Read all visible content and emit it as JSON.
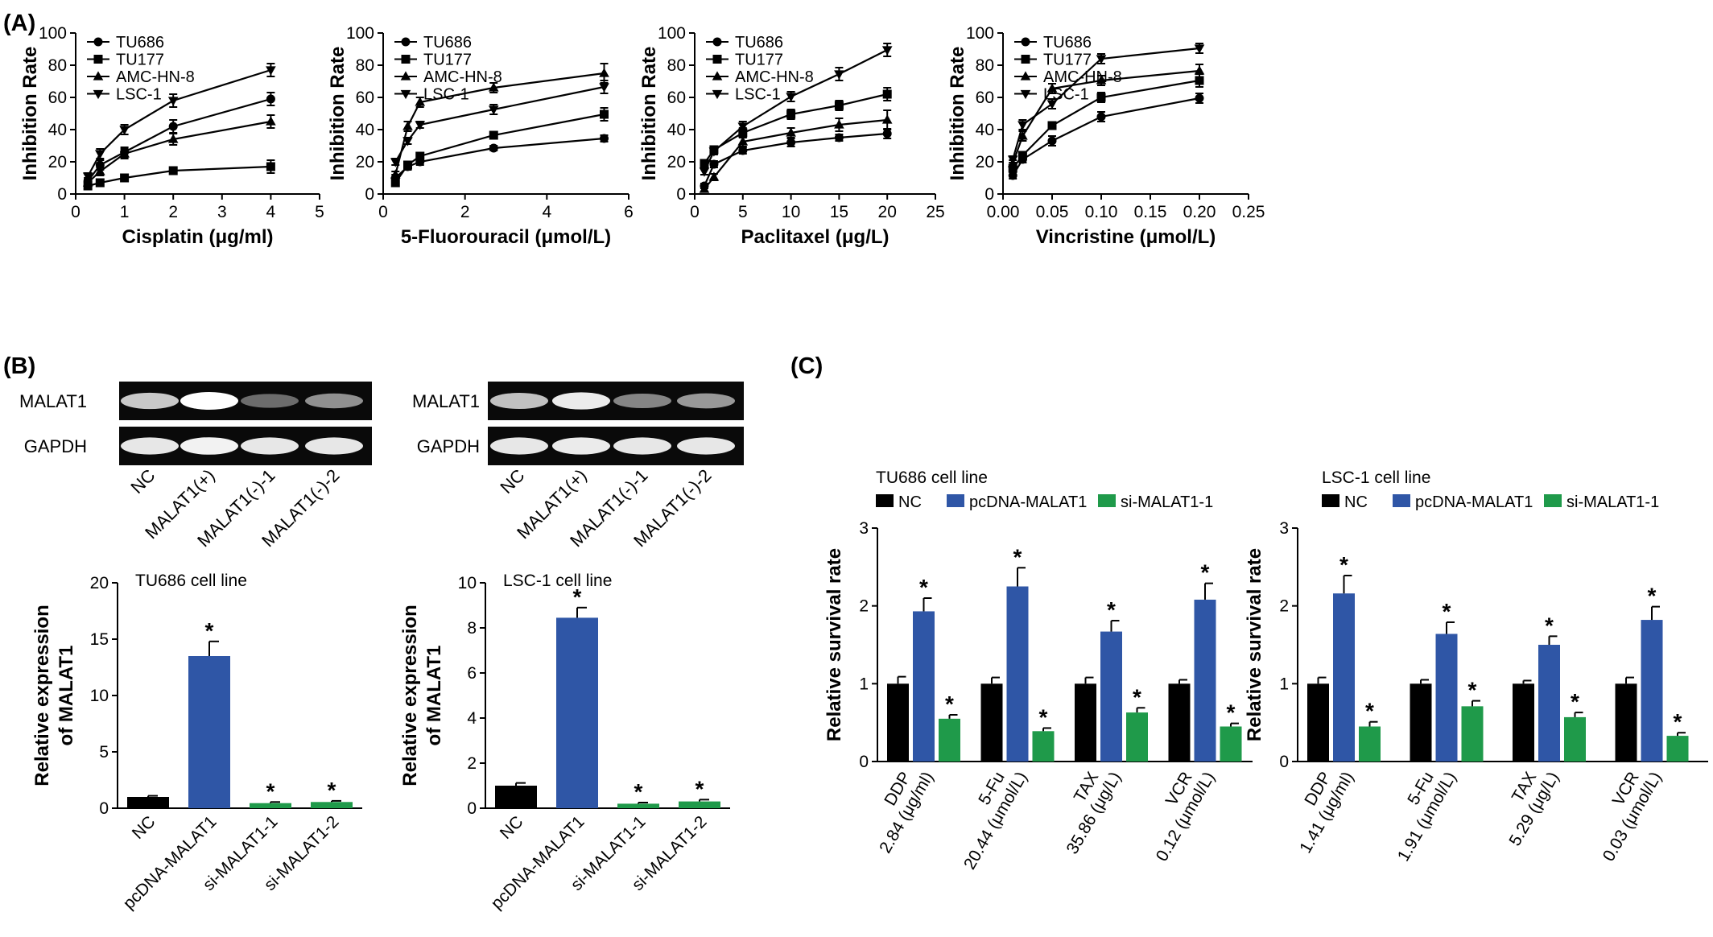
{
  "panel_labels": {
    "a": "(A)",
    "b": "(B)",
    "c": "(C)"
  },
  "colors": {
    "nc": "#000000",
    "pcdna": "#2f56a6",
    "si": "#1f9a4a",
    "line": "#000000"
  },
  "markers": [
    "circle",
    "square",
    "triangle-up",
    "triangle-down"
  ],
  "chart_data": [
    {
      "type": "line",
      "ylabel": "Inhibition Rate",
      "xlabel": "Cisplatin (μg/ml)",
      "xlim": [
        0,
        5
      ],
      "ylim": [
        0,
        100
      ],
      "xticks": [
        "0",
        "1",
        "2",
        "3",
        "4",
        "5"
      ],
      "yticks": [
        "0",
        "20",
        "40",
        "60",
        "80",
        "100"
      ],
      "legend_position": "top-left",
      "x": [
        0.25,
        0.5,
        1,
        2,
        4
      ],
      "series": [
        {
          "name": "TU686",
          "values": [
            8,
            18,
            26,
            42,
            59
          ],
          "err": [
            2,
            3,
            3,
            4,
            4
          ]
        },
        {
          "name": "TU177",
          "values": [
            5,
            7,
            10,
            14.5,
            17
          ],
          "err": [
            1.5,
            1.5,
            2,
            2,
            4
          ]
        },
        {
          "name": "AMC-HN-8",
          "values": [
            7,
            14,
            25,
            34,
            45
          ],
          "err": [
            2,
            2.5,
            3,
            3.5,
            4
          ]
        },
        {
          "name": "LSC-1",
          "values": [
            11,
            25,
            40,
            58,
            77
          ],
          "err": [
            2,
            3,
            3,
            4,
            4
          ]
        }
      ]
    },
    {
      "type": "line",
      "ylabel": "Inhibition Rate",
      "xlabel": "5-Fluorouracil (μmol/L)",
      "xlim": [
        0,
        6
      ],
      "ylim": [
        0,
        100
      ],
      "xticks": [
        "0",
        "2",
        "4",
        "6"
      ],
      "yticks": [
        "0",
        "20",
        "40",
        "60",
        "80",
        "100"
      ],
      "legend_position": "top-left",
      "x": [
        0.3,
        0.6,
        0.9,
        2.7,
        5.4
      ],
      "series": [
        {
          "name": "TU686",
          "values": [
            10,
            17,
            20,
            28.5,
            34.5
          ],
          "err": [
            2,
            2,
            2,
            1.5,
            2
          ]
        },
        {
          "name": "TU177",
          "values": [
            7,
            18,
            23.5,
            36.5,
            49.5
          ],
          "err": [
            2,
            2,
            2,
            2,
            4
          ]
        },
        {
          "name": "AMC-HN-8",
          "values": [
            12,
            42,
            57,
            66,
            75
          ],
          "err": [
            2,
            3,
            3,
            3,
            6
          ]
        },
        {
          "name": "LSC-1",
          "values": [
            20,
            33,
            43,
            52.5,
            66.5
          ],
          "err": [
            2,
            2,
            2,
            3,
            4
          ]
        }
      ]
    },
    {
      "type": "line",
      "ylabel": "Inhibition Rate",
      "xlabel": "Paclitaxel (μg/L)",
      "xlim": [
        0,
        25
      ],
      "ylim": [
        0,
        100
      ],
      "xticks": [
        "0",
        "5",
        "10",
        "15",
        "20",
        "25"
      ],
      "yticks": [
        "0",
        "20",
        "40",
        "60",
        "80",
        "100"
      ],
      "legend_position": "top-left",
      "x": [
        1,
        2,
        5,
        10,
        15,
        20
      ],
      "series": [
        {
          "name": "TU686",
          "values": [
            5,
            18.5,
            27,
            32,
            35,
            37.5
          ],
          "err": [
            1.5,
            2,
            2,
            2.5,
            2,
            3
          ]
        },
        {
          "name": "TU177",
          "values": [
            19,
            27.5,
            38,
            49.5,
            55,
            62
          ],
          "err": [
            2,
            2,
            3,
            3,
            3,
            4
          ]
        },
        {
          "name": "AMC-HN-8",
          "values": [
            3,
            10.5,
            32.5,
            38,
            43,
            46
          ],
          "err": [
            1.5,
            2,
            3,
            3,
            4,
            6
          ]
        },
        {
          "name": "LSC-1",
          "values": [
            14,
            26.5,
            42,
            60.5,
            74.5,
            89.5
          ],
          "err": [
            2,
            2,
            3,
            3,
            4,
            4
          ]
        }
      ]
    },
    {
      "type": "line",
      "ylabel": "Inhibition Rate",
      "xlabel": "Vincristine (μmol/L)",
      "xlim": [
        0,
        0.25
      ],
      "ylim": [
        0,
        100
      ],
      "xticks": [
        "0.00",
        "0.05",
        "0.10",
        "0.15",
        "0.20",
        "0.25"
      ],
      "yticks": [
        "0",
        "20",
        "40",
        "60",
        "80",
        "100"
      ],
      "legend_position": "top-left",
      "x": [
        0.01,
        0.02,
        0.05,
        0.1,
        0.2
      ],
      "series": [
        {
          "name": "TU686",
          "values": [
            11.5,
            21.5,
            33,
            48,
            59.5
          ],
          "err": [
            2,
            2,
            3,
            3,
            3
          ]
        },
        {
          "name": "TU177",
          "values": [
            16,
            24,
            42.5,
            60,
            70.5
          ],
          "err": [
            2,
            2,
            2,
            3,
            4
          ]
        },
        {
          "name": "AMC-HN-8",
          "values": [
            19,
            36,
            65.5,
            70.5,
            76.5
          ],
          "err": [
            2,
            3,
            3,
            3,
            4
          ]
        },
        {
          "name": "LSC-1",
          "values": [
            21.5,
            43,
            56,
            84,
            90.5
          ],
          "err": [
            2,
            3,
            3,
            3,
            3
          ]
        }
      ]
    },
    {
      "type": "bar",
      "title": "TU686 cell line",
      "ylabel": "Relative expression of MALAT1",
      "ylim": [
        0,
        20
      ],
      "yticks": [
        "0",
        "5",
        "10",
        "15",
        "20"
      ],
      "categories": [
        "NC",
        "pcDNA-MALAT1",
        "si-MALAT1-1",
        "si-MALAT1-2"
      ],
      "values": [
        1.0,
        13.5,
        0.45,
        0.55
      ],
      "err": [
        0.1,
        1.3,
        0.1,
        0.1
      ],
      "significant": [
        false,
        true,
        true,
        true
      ],
      "star": "*"
    },
    {
      "type": "bar",
      "title": "LSC-1 cell line",
      "ylabel": "Relative expression of MALAT1",
      "ylim": [
        0,
        10
      ],
      "yticks": [
        "0",
        "2",
        "4",
        "6",
        "8",
        "10"
      ],
      "categories": [
        "NC",
        "pcDNA-MALAT1",
        "si-MALAT1-1",
        "si-MALAT1-2"
      ],
      "values": [
        1.0,
        8.45,
        0.2,
        0.3
      ],
      "err": [
        0.12,
        0.45,
        0.05,
        0.08
      ],
      "significant": [
        false,
        true,
        true,
        true
      ],
      "star": "*"
    },
    {
      "type": "bar",
      "title": "TU686 cell line",
      "ylabel": "Relative survival rate",
      "ylim": [
        0,
        3
      ],
      "yticks": [
        "0",
        "1",
        "2",
        "3"
      ],
      "legend_position": "top",
      "series_names": [
        "NC",
        "pcDNA-MALAT1",
        "si-MALAT1-1"
      ],
      "groups": [
        {
          "label1": "DDP",
          "label2": "2.84 (μg/ml)",
          "values": [
            1.0,
            1.93,
            0.55
          ],
          "err": [
            0.09,
            0.17,
            0.05
          ]
        },
        {
          "label1": "5-Fu",
          "label2": "20.44 (μmol/L)",
          "values": [
            1.0,
            2.25,
            0.39
          ],
          "err": [
            0.08,
            0.24,
            0.04
          ]
        },
        {
          "label1": "TAX",
          "label2": "35.86 (μg/L)",
          "values": [
            1.0,
            1.67,
            0.63
          ],
          "err": [
            0.08,
            0.14,
            0.06
          ]
        },
        {
          "label1": "VCR",
          "label2": "0.12 (μmol/L)",
          "values": [
            1.0,
            2.08,
            0.45
          ],
          "err": [
            0.05,
            0.21,
            0.04
          ]
        }
      ],
      "star": "*"
    },
    {
      "type": "bar",
      "title": "LSC-1 cell line",
      "ylabel": "Relative survival rate",
      "ylim": [
        0,
        3
      ],
      "yticks": [
        "0",
        "1",
        "2",
        "3"
      ],
      "legend_position": "top",
      "series_names": [
        "NC",
        "pcDNA-MALAT1",
        "si-MALAT1-1"
      ],
      "groups": [
        {
          "label1": "DDP",
          "label2": "1.41 (μg/ml)",
          "values": [
            1.0,
            2.16,
            0.45
          ],
          "err": [
            0.08,
            0.23,
            0.06
          ]
        },
        {
          "label1": "5-Fu",
          "label2": "1.91 (μmol/L)",
          "values": [
            1.0,
            1.64,
            0.71
          ],
          "err": [
            0.05,
            0.15,
            0.07
          ]
        },
        {
          "label1": "TAX",
          "label2": "5.29 (μg/L)",
          "values": [
            1.0,
            1.5,
            0.57
          ],
          "err": [
            0.04,
            0.11,
            0.06
          ]
        },
        {
          "label1": "VCR",
          "label2": "0.03 (μmol/L)",
          "values": [
            1.0,
            1.82,
            0.33
          ],
          "err": [
            0.08,
            0.17,
            0.04
          ]
        }
      ],
      "star": "*"
    }
  ],
  "blots": [
    {
      "rows": [
        "MALAT1",
        "GAPDH"
      ],
      "lanes": [
        "NC",
        "MALAT1(+)",
        "MALAT1(-)-1",
        "MALAT1(-)-2"
      ],
      "intensity": [
        [
          0.78,
          1.0,
          0.4,
          0.55
        ],
        [
          0.9,
          0.95,
          0.9,
          0.9
        ]
      ]
    },
    {
      "rows": [
        "MALAT1",
        "GAPDH"
      ],
      "lanes": [
        "NC",
        "MALAT1(+)",
        "MALAT1(-)-1",
        "MALAT1(-)-2"
      ],
      "intensity": [
        [
          0.75,
          0.92,
          0.5,
          0.58
        ],
        [
          0.9,
          0.92,
          0.9,
          0.9
        ]
      ]
    }
  ]
}
